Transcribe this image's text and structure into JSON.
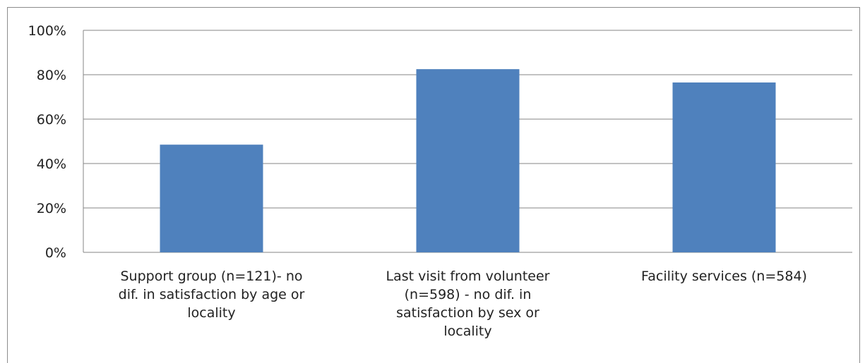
{
  "chart_data": {
    "type": "bar",
    "title": "",
    "xlabel": "",
    "ylabel": "",
    "ylim": [
      0,
      100
    ],
    "y_ticks": [
      "0%",
      "20%",
      "40%",
      "60%",
      "80%",
      "100%"
    ],
    "y_tick_values": [
      0,
      20,
      40,
      60,
      80,
      100
    ],
    "grid": true,
    "legend": "none",
    "categories": [
      "Support group (n=121)- no dif. in satisfaction by age or locality",
      "Last visit from volunteer (n=598) - no dif. in satisfaction by sex or locality",
      "Facility services (n=584)"
    ],
    "category_lines": [
      [
        "Support group (n=121)- no",
        "dif. in satisfaction by age or",
        "locality"
      ],
      [
        "Last visit from volunteer",
        "(n=598) - no dif. in",
        "satisfaction by sex or",
        "locality"
      ],
      [
        "Facility services (n=584)"
      ]
    ],
    "values": [
      48.5,
      82.5,
      76.5
    ],
    "bar_color": "#4f81bd",
    "grid_color": "#868686"
  }
}
